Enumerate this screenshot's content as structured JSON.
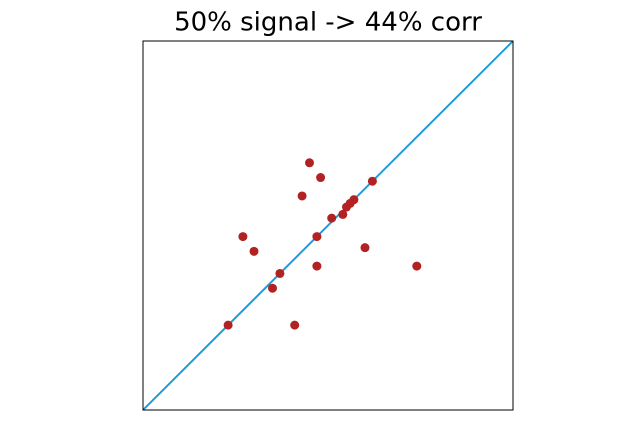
{
  "chart_data": {
    "type": "scatter",
    "title": "50% signal -> 44% corr",
    "x": [
      0.45,
      0.48,
      0.43,
      0.62,
      0.57,
      0.56,
      0.55,
      0.54,
      0.51,
      0.47,
      0.27,
      0.3,
      0.6,
      0.47,
      0.74,
      0.37,
      0.35,
      0.23,
      0.41
    ],
    "values": [
      0.67,
      0.63,
      0.58,
      0.62,
      0.57,
      0.56,
      0.55,
      0.53,
      0.52,
      0.47,
      0.47,
      0.43,
      0.44,
      0.39,
      0.39,
      0.37,
      0.33,
      0.23,
      0.23
    ],
    "color": "#b22222",
    "reference_line": {
      "x": [
        0,
        1
      ],
      "y": [
        0,
        1
      ],
      "color": "#1f9ae0"
    },
    "xlim": [
      0,
      1
    ],
    "ylim": [
      0,
      1
    ]
  }
}
